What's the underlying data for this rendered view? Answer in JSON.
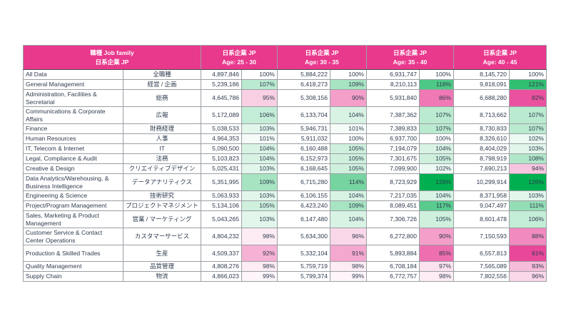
{
  "table": {
    "header": {
      "job_family_line1": "職種  Job family",
      "job_family_line2": "日系企業 JP",
      "group_label": "日系企業 JP",
      "age_prefix": "Age: ",
      "age_ranges": [
        "25 - 30",
        "30 - 35",
        "35 - 40",
        "40 - 45"
      ]
    },
    "rows": [
      {
        "en": "All Data",
        "jp": "全職種",
        "cells": [
          {
            "v": "4,897,846",
            "p": "100%"
          },
          {
            "v": "5,884,222",
            "p": "100%"
          },
          {
            "v": "6,931,747",
            "p": "100%"
          },
          {
            "v": "8,145,720",
            "p": "100%"
          }
        ]
      },
      {
        "en": "General Management",
        "jp": "経営 / 企画",
        "cells": [
          {
            "v": "5,239,186",
            "p": "107%"
          },
          {
            "v": "6,418,273",
            "p": "109%"
          },
          {
            "v": "8,210,113",
            "p": "118%"
          },
          {
            "v": "9,818,091",
            "p": "121%"
          }
        ]
      },
      {
        "en": "Administration, Facilities & Secretarial",
        "jp": "総務",
        "cells": [
          {
            "v": "4,645,786",
            "p": "95%"
          },
          {
            "v": "5,308,156",
            "p": "90%"
          },
          {
            "v": "5,931,840",
            "p": "86%"
          },
          {
            "v": "6,688,280",
            "p": "82%"
          }
        ]
      },
      {
        "en": "Communications & Corporate Affairs",
        "jp": "広報",
        "cells": [
          {
            "v": "5,172,089",
            "p": "106%"
          },
          {
            "v": "6,133,704",
            "p": "104%"
          },
          {
            "v": "7,387,362",
            "p": "107%"
          },
          {
            "v": "8,713,662",
            "p": "107%"
          }
        ]
      },
      {
        "en": "Finance",
        "jp": "財務経理",
        "cells": [
          {
            "v": "5,038,533",
            "p": "103%"
          },
          {
            "v": "5,946,731",
            "p": "101%"
          },
          {
            "v": "7,389,833",
            "p": "107%"
          },
          {
            "v": "8,730,833",
            "p": "107%"
          }
        ]
      },
      {
        "en": "Human Resources",
        "jp": "人事",
        "cells": [
          {
            "v": "4,964,353",
            "p": "101%"
          },
          {
            "v": "5,911,032",
            "p": "100%"
          },
          {
            "v": "6,937,700",
            "p": "100%"
          },
          {
            "v": "8,326,610",
            "p": "102%"
          }
        ]
      },
      {
        "en": "IT, Telecom & Internet",
        "jp": "IT",
        "cells": [
          {
            "v": "5,090,500",
            "p": "104%"
          },
          {
            "v": "6,160,488",
            "p": "105%"
          },
          {
            "v": "7,194,079",
            "p": "104%"
          },
          {
            "v": "8,404,029",
            "p": "103%"
          }
        ]
      },
      {
        "en": "Legal, Compliance & Audit",
        "jp": "法務",
        "cells": [
          {
            "v": "5,103,823",
            "p": "104%"
          },
          {
            "v": "6,152,973",
            "p": "105%"
          },
          {
            "v": "7,301,675",
            "p": "105%"
          },
          {
            "v": "8,798,919",
            "p": "108%"
          }
        ]
      },
      {
        "en": "Creative & Design",
        "jp": "クリエイティブデザイン",
        "cells": [
          {
            "v": "5,025,431",
            "p": "103%"
          },
          {
            "v": "6,168,645",
            "p": "105%"
          },
          {
            "v": "7,099,900",
            "p": "102%"
          },
          {
            "v": "7,690,213",
            "p": "94%"
          }
        ]
      },
      {
        "en": "Data Analytics/Warehousing, & Business Intelligence",
        "jp": "データアナリティクス",
        "cells": [
          {
            "v": "5,351,995",
            "p": "109%"
          },
          {
            "v": "6,715,280",
            "p": "114%"
          },
          {
            "v": "8,723,929",
            "p": "126%"
          },
          {
            "v": "10,299,914",
            "p": "126%"
          }
        ]
      },
      {
        "en": "Engineering & Science",
        "jp": "技術研究",
        "cells": [
          {
            "v": "5,063,933",
            "p": "103%"
          },
          {
            "v": "6,106,155",
            "p": "104%"
          },
          {
            "v": "7,217,035",
            "p": "104%"
          },
          {
            "v": "8,371,958",
            "p": "103%"
          }
        ]
      },
      {
        "en": "Project/Program Management",
        "jp": "プロジェクトマネジメント",
        "cells": [
          {
            "v": "5,134,106",
            "p": "105%"
          },
          {
            "v": "6,423,240",
            "p": "109%"
          },
          {
            "v": "8,089,451",
            "p": "117%"
          },
          {
            "v": "9,047,497",
            "p": "111%"
          }
        ]
      },
      {
        "en": "Sales, Marketing & Product Management",
        "jp": "営業 / マーケティング",
        "cells": [
          {
            "v": "5,043,265",
            "p": "103%"
          },
          {
            "v": "6,147,480",
            "p": "104%"
          },
          {
            "v": "7,306,726",
            "p": "105%"
          },
          {
            "v": "8,601,478",
            "p": "106%"
          }
        ]
      },
      {
        "en": "Customer Service & Contact Center Operations",
        "jp": "カスタマーサービス",
        "cells": [
          {
            "v": "4,804,232",
            "p": "98%"
          },
          {
            "v": "5,634,300",
            "p": "96%"
          },
          {
            "v": "6,272,800",
            "p": "90%"
          },
          {
            "v": "7,150,593",
            "p": "88%"
          }
        ]
      },
      {
        "en": "Production & Skilled Trades",
        "jp": "生産",
        "cells": [
          {
            "v": "4,509,337",
            "p": "92%"
          },
          {
            "v": "5,332,104",
            "p": "91%"
          },
          {
            "v": "5,893,884",
            "p": "85%"
          },
          {
            "v": "6,557,813",
            "p": "81%"
          }
        ]
      },
      {
        "en": "Quality Management",
        "jp": "品質管理",
        "cells": [
          {
            "v": "4,808,276",
            "p": "98%"
          },
          {
            "v": "5,759,719",
            "p": "98%"
          },
          {
            "v": "6,708,184",
            "p": "97%"
          },
          {
            "v": "7,565,089",
            "p": "93%"
          }
        ]
      },
      {
        "en": "Supply Chain",
        "jp": "物流",
        "cells": [
          {
            "v": "4,866,023",
            "p": "99%"
          },
          {
            "v": "5,799,374",
            "p": "99%"
          },
          {
            "v": "6,772,757",
            "p": "98%"
          },
          {
            "v": "7,802,556",
            "p": "96%"
          }
        ]
      }
    ]
  },
  "colors": {
    "header_bg": "#e9398d",
    "header_text": "#ffffff",
    "body_text": "#2e3b4e",
    "grid": "#9b9fa4",
    "green_max": "#00b050",
    "pink_max": "#e9489a",
    "neutral": "#ffffff",
    "green_full_pct": 126,
    "pink_full_pct": 81
  }
}
